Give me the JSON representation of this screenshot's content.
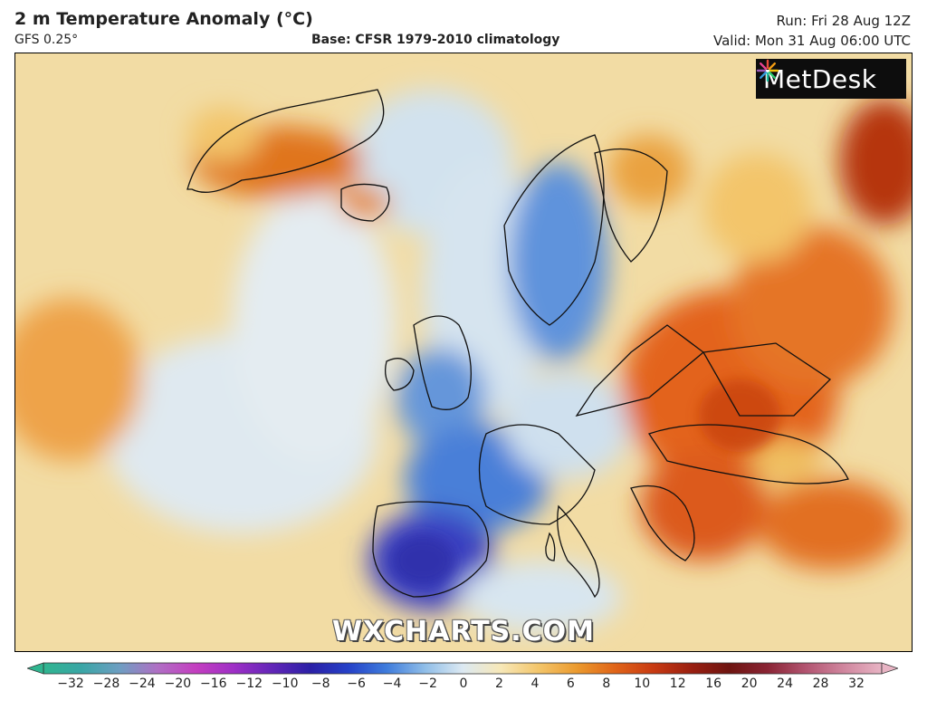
{
  "header": {
    "title": "2 m Temperature Anomaly (°C)",
    "model": "GFS 0.25°",
    "base": "Base: CFSR 1979-2010 climatology",
    "run": "Run: Fri 28 Aug 12Z",
    "valid": "Valid: Mon 31 Aug 06:00 UTC"
  },
  "branding": {
    "logo_text": "MetDesk",
    "watermark": "WXCHARTS.COM"
  },
  "colorbar": {
    "ticks": [
      "−32",
      "−28",
      "−24",
      "−20",
      "−16",
      "−12",
      "−10",
      "−8",
      "−6",
      "−4",
      "−2",
      "0",
      "2",
      "4",
      "6",
      "8",
      "10",
      "12",
      "16",
      "20",
      "24",
      "28",
      "32"
    ],
    "colors": [
      "#2fb58f",
      "#3aa6a6",
      "#6e9ec2",
      "#b06fc4",
      "#c43ec0",
      "#9e2fc6",
      "#6226b8",
      "#2b1fa6",
      "#2541c8",
      "#3f7cdc",
      "#8fbde8",
      "#dce9f2",
      "#f7e8b8",
      "#f3c56a",
      "#eb9a2e",
      "#e06418",
      "#c83a12",
      "#9a1f10",
      "#6e1410",
      "#8a2434",
      "#b25470",
      "#d0869e",
      "#e8b4c4"
    ]
  },
  "palette": {
    "ocean_warm": "#f0d79a",
    "cold": "#3f7cdc",
    "very_cold": "#3a3fc0",
    "hot": "#e3641c",
    "very_hot": "#b63410"
  }
}
